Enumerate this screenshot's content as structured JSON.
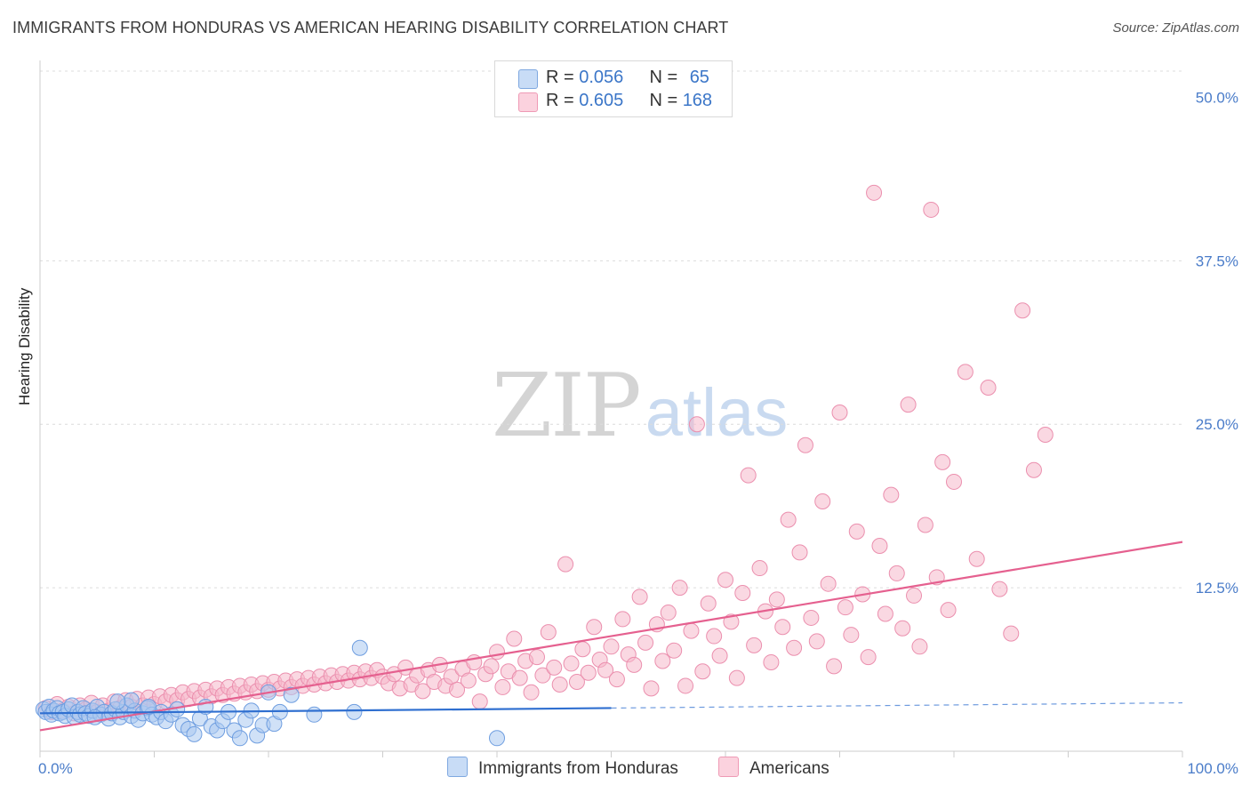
{
  "header": {
    "title": "IMMIGRANTS FROM HONDURAS VS AMERICAN HEARING DISABILITY CORRELATION CHART",
    "source": "Source: ZipAtlas.com"
  },
  "watermark": {
    "zip": "ZIP",
    "atlas": "atlas"
  },
  "legend": {
    "rows": [
      {
        "r_label": "R = ",
        "r_value": "0.056",
        "n_label": "N = ",
        "n_value": "65",
        "color": "#aac8f0"
      },
      {
        "r_label": "R = ",
        "r_value": "0.605",
        "n_label": "N = ",
        "n_value": "168",
        "color": "#f6b8cb"
      }
    ]
  },
  "bottom_legend": {
    "items": [
      {
        "label": "Immigrants from Honduras",
        "color": "#aac8f0"
      },
      {
        "label": "Americans",
        "color": "#f6b8cb"
      }
    ]
  },
  "chart_data": {
    "type": "scatter",
    "title": "IMMIGRANTS FROM HONDURAS VS AMERICAN HEARING DISABILITY CORRELATION CHART",
    "xlabel": "",
    "ylabel": "Hearing Disability",
    "xlim": [
      0,
      100
    ],
    "ylim": [
      0,
      52
    ],
    "x_tick_labels": [
      "0.0%",
      "100.0%"
    ],
    "y_ticks": [
      12.5,
      25.0,
      37.5,
      50.0
    ],
    "y_tick_labels": [
      "12.5%",
      "25.0%",
      "37.5%",
      "50.0%"
    ],
    "grid": "horizontal dashed",
    "legend_position": "top-center",
    "colors": {
      "blue_fill": "#aac8f0",
      "blue_line": "#2f6fd0",
      "pink_fill": "#f6b8cb",
      "pink_line": "#e5608f",
      "axis_label": "#4a7cc9"
    },
    "series": [
      {
        "name": "Immigrants from Honduras",
        "r": 0.056,
        "n": 65,
        "trend": {
          "x": [
            0,
            50,
            100
          ],
          "y": [
            2.9,
            3.3,
            3.7
          ],
          "solid_until": 50
        },
        "points": [
          [
            0.3,
            3.2
          ],
          [
            0.5,
            3.0
          ],
          [
            0.8,
            3.4
          ],
          [
            1.0,
            2.8
          ],
          [
            1.2,
            3.1
          ],
          [
            1.5,
            3.3
          ],
          [
            1.7,
            2.9
          ],
          [
            2.0,
            3.0
          ],
          [
            2.2,
            2.7
          ],
          [
            2.5,
            3.2
          ],
          [
            2.8,
            3.5
          ],
          [
            3.0,
            2.6
          ],
          [
            3.3,
            3.0
          ],
          [
            3.5,
            2.8
          ],
          [
            3.8,
            3.3
          ],
          [
            4.0,
            2.9
          ],
          [
            4.3,
            2.7
          ],
          [
            4.6,
            3.1
          ],
          [
            5.0,
            3.4
          ],
          [
            5.3,
            2.8
          ],
          [
            5.6,
            3.0
          ],
          [
            6.0,
            2.5
          ],
          [
            6.3,
            2.9
          ],
          [
            6.6,
            3.2
          ],
          [
            7.0,
            2.6
          ],
          [
            7.3,
            3.0
          ],
          [
            7.6,
            3.5
          ],
          [
            8.0,
            2.7
          ],
          [
            8.3,
            3.1
          ],
          [
            8.6,
            2.4
          ],
          [
            9.0,
            2.9
          ],
          [
            9.4,
            3.3
          ],
          [
            9.8,
            2.8
          ],
          [
            10.2,
            2.6
          ],
          [
            10.6,
            3.0
          ],
          [
            11.0,
            2.3
          ],
          [
            11.5,
            2.8
          ],
          [
            12.0,
            3.2
          ],
          [
            12.5,
            2.0
          ],
          [
            13.0,
            1.7
          ],
          [
            13.5,
            1.3
          ],
          [
            14.0,
            2.5
          ],
          [
            14.5,
            3.4
          ],
          [
            15.0,
            1.9
          ],
          [
            15.5,
            1.6
          ],
          [
            16.0,
            2.3
          ],
          [
            16.5,
            3.0
          ],
          [
            17.0,
            1.6
          ],
          [
            17.5,
            1.0
          ],
          [
            18.0,
            2.4
          ],
          [
            18.5,
            3.1
          ],
          [
            19.0,
            1.2
          ],
          [
            19.5,
            2.0
          ],
          [
            20.0,
            4.5
          ],
          [
            20.5,
            2.1
          ],
          [
            21.0,
            3.0
          ],
          [
            22.0,
            4.3
          ],
          [
            24.0,
            2.8
          ],
          [
            28.0,
            7.9
          ],
          [
            27.5,
            3.0
          ],
          [
            8.0,
            3.9
          ],
          [
            9.5,
            3.4
          ],
          [
            6.8,
            3.8
          ],
          [
            4.8,
            2.6
          ],
          [
            40.0,
            1.0
          ]
        ]
      },
      {
        "name": "Americans",
        "r": 0.605,
        "n": 168,
        "trend": {
          "x": [
            0,
            100
          ],
          "y": [
            1.6,
            16.0
          ]
        },
        "points": [
          [
            0.5,
            3.3
          ],
          [
            1.0,
            3.0
          ],
          [
            1.5,
            3.6
          ],
          [
            2.0,
            3.1
          ],
          [
            2.5,
            3.4
          ],
          [
            3.0,
            2.9
          ],
          [
            3.5,
            3.5
          ],
          [
            4.0,
            3.2
          ],
          [
            4.5,
            3.7
          ],
          [
            5.0,
            3.0
          ],
          [
            5.5,
            3.5
          ],
          [
            6.0,
            3.1
          ],
          [
            6.5,
            3.8
          ],
          [
            7.0,
            3.3
          ],
          [
            7.5,
            3.9
          ],
          [
            8.0,
            3.4
          ],
          [
            8.5,
            4.0
          ],
          [
            9.0,
            3.5
          ],
          [
            9.5,
            4.1
          ],
          [
            10.0,
            3.6
          ],
          [
            10.5,
            4.2
          ],
          [
            11.0,
            3.8
          ],
          [
            11.5,
            4.3
          ],
          [
            12.0,
            3.9
          ],
          [
            12.5,
            4.5
          ],
          [
            13.0,
            4.0
          ],
          [
            13.5,
            4.6
          ],
          [
            14.0,
            4.1
          ],
          [
            14.5,
            4.7
          ],
          [
            15.0,
            4.2
          ],
          [
            15.5,
            4.8
          ],
          [
            16.0,
            4.3
          ],
          [
            16.5,
            4.9
          ],
          [
            17.0,
            4.4
          ],
          [
            17.5,
            5.0
          ],
          [
            18.0,
            4.5
          ],
          [
            18.5,
            5.1
          ],
          [
            19.0,
            4.6
          ],
          [
            19.5,
            5.2
          ],
          [
            20.0,
            4.7
          ],
          [
            20.5,
            5.3
          ],
          [
            21.0,
            4.8
          ],
          [
            21.5,
            5.4
          ],
          [
            22.0,
            4.9
          ],
          [
            22.5,
            5.5
          ],
          [
            23.0,
            5.0
          ],
          [
            23.5,
            5.6
          ],
          [
            24.0,
            5.1
          ],
          [
            24.5,
            5.7
          ],
          [
            25.0,
            5.2
          ],
          [
            25.5,
            5.8
          ],
          [
            26.0,
            5.3
          ],
          [
            26.5,
            5.9
          ],
          [
            27.0,
            5.4
          ],
          [
            27.5,
            6.0
          ],
          [
            28.0,
            5.5
          ],
          [
            28.5,
            6.1
          ],
          [
            29.0,
            5.6
          ],
          [
            29.5,
            6.2
          ],
          [
            30.0,
            5.7
          ],
          [
            30.5,
            5.2
          ],
          [
            31.0,
            5.9
          ],
          [
            31.5,
            4.8
          ],
          [
            32.0,
            6.4
          ],
          [
            32.5,
            5.1
          ],
          [
            33.0,
            5.8
          ],
          [
            33.5,
            4.6
          ],
          [
            34.0,
            6.2
          ],
          [
            34.5,
            5.3
          ],
          [
            35.0,
            6.6
          ],
          [
            35.5,
            5.0
          ],
          [
            36.0,
            5.7
          ],
          [
            36.5,
            4.7
          ],
          [
            37.0,
            6.3
          ],
          [
            37.5,
            5.4
          ],
          [
            38.0,
            6.8
          ],
          [
            38.5,
            3.8
          ],
          [
            39.0,
            5.9
          ],
          [
            39.5,
            6.5
          ],
          [
            40.0,
            7.6
          ],
          [
            40.5,
            4.9
          ],
          [
            41.0,
            6.1
          ],
          [
            41.5,
            8.6
          ],
          [
            42.0,
            5.6
          ],
          [
            42.5,
            6.9
          ],
          [
            43.0,
            4.5
          ],
          [
            43.5,
            7.2
          ],
          [
            44.0,
            5.8
          ],
          [
            44.5,
            9.1
          ],
          [
            45.0,
            6.4
          ],
          [
            45.5,
            5.1
          ],
          [
            46.0,
            14.3
          ],
          [
            46.5,
            6.7
          ],
          [
            47.0,
            5.3
          ],
          [
            47.5,
            7.8
          ],
          [
            48.0,
            6.0
          ],
          [
            48.5,
            9.5
          ],
          [
            49.0,
            7.0
          ],
          [
            49.5,
            6.2
          ],
          [
            50.0,
            8.0
          ],
          [
            50.5,
            5.5
          ],
          [
            51.0,
            10.1
          ],
          [
            51.5,
            7.4
          ],
          [
            52.0,
            6.6
          ],
          [
            52.5,
            11.8
          ],
          [
            53.0,
            8.3
          ],
          [
            53.5,
            4.8
          ],
          [
            54.0,
            9.7
          ],
          [
            54.5,
            6.9
          ],
          [
            55.0,
            10.6
          ],
          [
            55.5,
            7.7
          ],
          [
            56.0,
            12.5
          ],
          [
            56.5,
            5.0
          ],
          [
            57.0,
            9.2
          ],
          [
            57.5,
            25.0
          ],
          [
            58.0,
            6.1
          ],
          [
            58.5,
            11.3
          ],
          [
            59.0,
            8.8
          ],
          [
            59.5,
            7.3
          ],
          [
            60.0,
            13.1
          ],
          [
            60.5,
            9.9
          ],
          [
            61.0,
            5.6
          ],
          [
            61.5,
            12.1
          ],
          [
            62.0,
            21.1
          ],
          [
            62.5,
            8.1
          ],
          [
            63.0,
            14.0
          ],
          [
            63.5,
            10.7
          ],
          [
            64.0,
            6.8
          ],
          [
            64.5,
            11.6
          ],
          [
            65.0,
            9.5
          ],
          [
            65.5,
            17.7
          ],
          [
            66.0,
            7.9
          ],
          [
            66.5,
            15.2
          ],
          [
            67.0,
            23.4
          ],
          [
            67.5,
            10.2
          ],
          [
            68.0,
            8.4
          ],
          [
            68.5,
            19.1
          ],
          [
            69.0,
            12.8
          ],
          [
            69.5,
            6.5
          ],
          [
            70.0,
            25.9
          ],
          [
            70.5,
            11.0
          ],
          [
            71.0,
            8.9
          ],
          [
            71.5,
            16.8
          ],
          [
            72.0,
            12.0
          ],
          [
            72.5,
            7.2
          ],
          [
            73.0,
            42.7
          ],
          [
            73.5,
            15.7
          ],
          [
            74.0,
            10.5
          ],
          [
            74.5,
            19.6
          ],
          [
            75.0,
            13.6
          ],
          [
            75.5,
            9.4
          ],
          [
            76.0,
            26.5
          ],
          [
            76.5,
            11.9
          ],
          [
            77.0,
            8.0
          ],
          [
            77.5,
            17.3
          ],
          [
            78.0,
            41.4
          ],
          [
            78.5,
            13.3
          ],
          [
            79.0,
            22.1
          ],
          [
            79.5,
            10.8
          ],
          [
            80.0,
            20.6
          ],
          [
            81.0,
            29.0
          ],
          [
            82.0,
            14.7
          ],
          [
            83.0,
            27.8
          ],
          [
            84.0,
            12.4
          ],
          [
            85.0,
            9.0
          ],
          [
            86.0,
            33.7
          ],
          [
            87.0,
            21.5
          ],
          [
            88.0,
            24.2
          ]
        ]
      }
    ]
  }
}
